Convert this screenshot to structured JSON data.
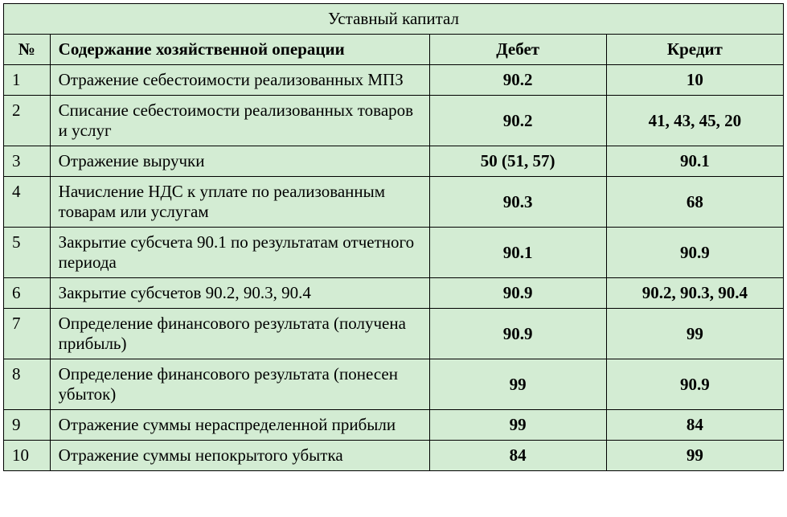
{
  "table": {
    "background_color": "#d3ecd3",
    "border_color": "#000000",
    "font_family": "Times New Roman",
    "title": "Уставный капитал",
    "headers": {
      "num": "№",
      "description": "Содержание хозяйственной операции",
      "debit": "Дебет",
      "credit": "Кредит"
    },
    "rows": [
      {
        "num": "1",
        "description": "Отражение себестоимости реализованных МПЗ",
        "debit": "90.2",
        "credit": "10"
      },
      {
        "num": "2",
        "description": "Списание себестоимости реализованных товаров и услуг",
        "debit": "90.2",
        "credit": "41, 43, 45, 20"
      },
      {
        "num": "3",
        "description": "Отражение выручки",
        "debit": "50 (51, 57)",
        "credit": "90.1"
      },
      {
        "num": "4",
        "description": "Начисление НДС к уплате по реализованным товарам или услугам",
        "debit": "90.3",
        "credit": "68"
      },
      {
        "num": "5",
        "description": "Закрытие субсчета 90.1 по результатам отчетного периода",
        "debit": "90.1",
        "credit": "90.9"
      },
      {
        "num": "6",
        "description": "Закрытие субсчетов 90.2, 90.3, 90.4",
        "debit": "90.9",
        "credit": "90.2, 90.3, 90.4"
      },
      {
        "num": "7",
        "description": "Определение финансового результата (получена прибыль)",
        "debit": "90.9",
        "credit": "99"
      },
      {
        "num": "8",
        "description": "Определение финансового результата (понесен убыток)",
        "debit": "99",
        "credit": "90.9"
      },
      {
        "num": "9",
        "description": "Отражение суммы нераспределенной прибыли",
        "debit": "99",
        "credit": "84"
      },
      {
        "num": "10",
        "description": "Отражение суммы непокрытого убытка",
        "debit": "84",
        "credit": "99"
      }
    ]
  }
}
